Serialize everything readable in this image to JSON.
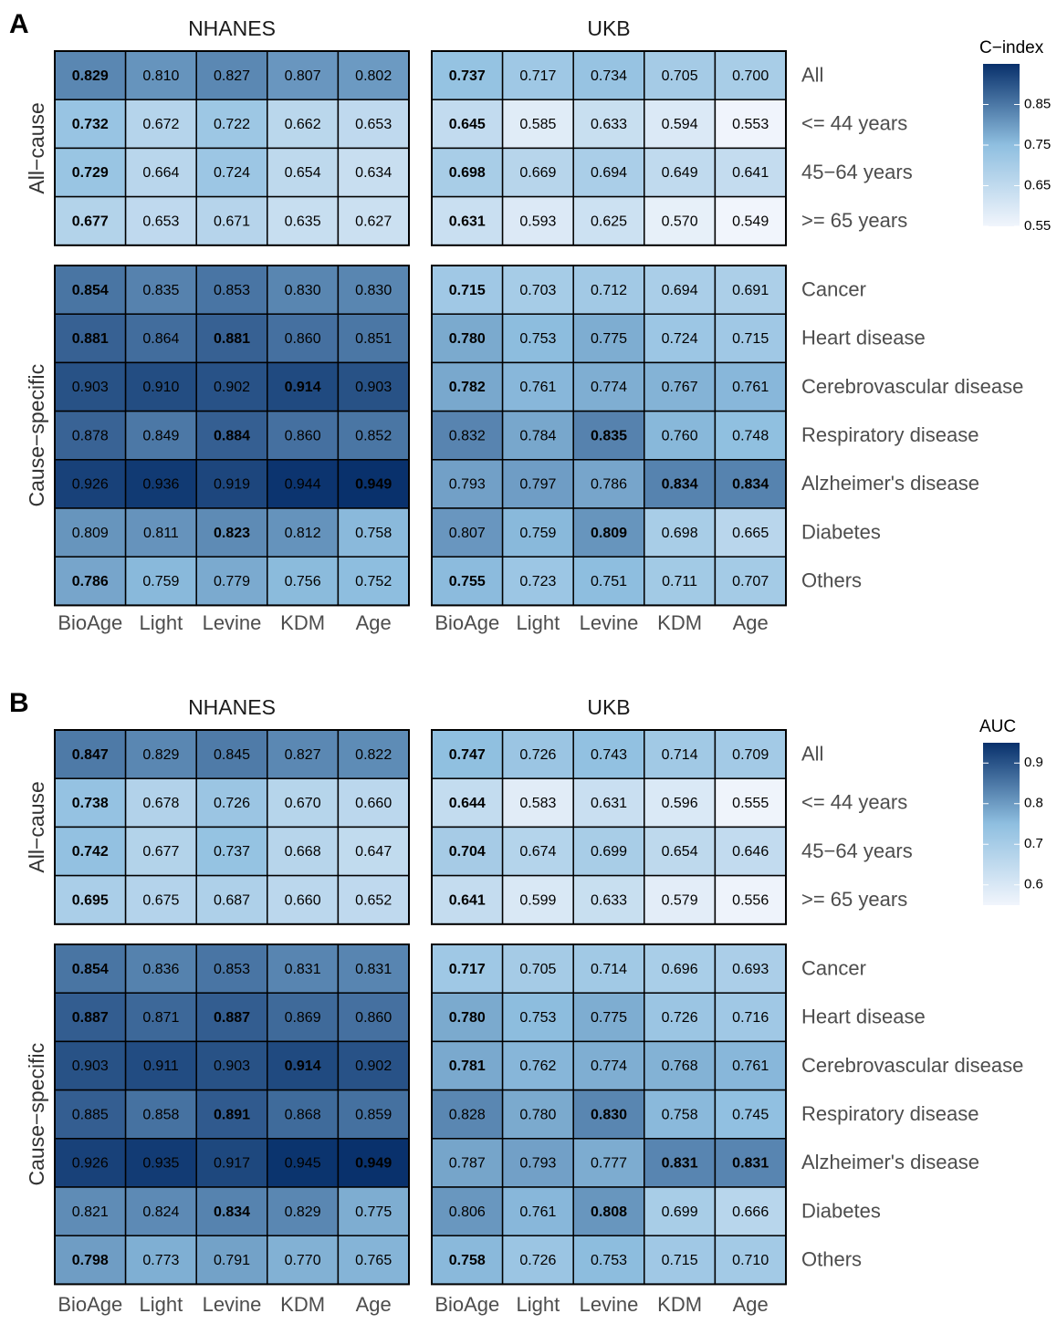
{
  "colors": {
    "low": "#f1f5fc",
    "mid": "#8fbfe0",
    "high": "#08306b"
  },
  "chart_data": [
    {
      "type": "heatmap",
      "panel_label": "A",
      "legend_title": "C−index",
      "scale": {
        "min": 0.55,
        "max": 0.95,
        "ticks": [
          "0.85",
          "0.75",
          "0.65",
          "0.55"
        ],
        "tick_values": [
          0.85,
          0.75,
          0.65,
          0.55
        ]
      },
      "datasets": [
        "NHANES",
        "UKB"
      ],
      "columns": [
        "BioAge",
        "Light",
        "Levine",
        "KDM",
        "Age"
      ],
      "groups": [
        {
          "label": "All−cause",
          "rows": [
            "All",
            "<= 44 years",
            "45−64 years",
            ">= 65 years"
          ],
          "values": {
            "NHANES": [
              [
                0.829,
                0.81,
                0.827,
                0.807,
                0.802
              ],
              [
                0.732,
                0.672,
                0.722,
                0.662,
                0.653
              ],
              [
                0.729,
                0.664,
                0.724,
                0.654,
                0.634
              ],
              [
                0.677,
                0.653,
                0.671,
                0.635,
                0.627
              ]
            ],
            "UKB": [
              [
                0.737,
                0.717,
                0.734,
                0.705,
                0.7
              ],
              [
                0.645,
                0.585,
                0.633,
                0.594,
                0.553
              ],
              [
                0.698,
                0.669,
                0.694,
                0.649,
                0.641
              ],
              [
                0.631,
                0.593,
                0.625,
                0.57,
                0.549
              ]
            ]
          }
        },
        {
          "label": "Cause−specific",
          "rows": [
            "Cancer",
            "Heart disease",
            "Cerebrovascular disease",
            "Respiratory disease",
            "Alzheimer's disease",
            "Diabetes",
            "Others"
          ],
          "values": {
            "NHANES": [
              [
                0.854,
                0.835,
                0.853,
                0.83,
                0.83
              ],
              [
                0.881,
                0.864,
                0.881,
                0.86,
                0.851
              ],
              [
                0.903,
                0.91,
                0.902,
                0.914,
                0.903
              ],
              [
                0.878,
                0.849,
                0.884,
                0.86,
                0.852
              ],
              [
                0.926,
                0.936,
                0.919,
                0.944,
                0.949
              ],
              [
                0.809,
                0.811,
                0.823,
                0.812,
                0.758
              ],
              [
                0.786,
                0.759,
                0.779,
                0.756,
                0.752
              ]
            ],
            "UKB": [
              [
                0.715,
                0.703,
                0.712,
                0.694,
                0.691
              ],
              [
                0.78,
                0.753,
                0.775,
                0.724,
                0.715
              ],
              [
                0.782,
                0.761,
                0.774,
                0.767,
                0.761
              ],
              [
                0.832,
                0.784,
                0.835,
                0.76,
                0.748
              ],
              [
                0.793,
                0.797,
                0.786,
                0.834,
                0.834
              ],
              [
                0.807,
                0.759,
                0.809,
                0.698,
                0.665
              ],
              [
                0.755,
                0.723,
                0.751,
                0.711,
                0.707
              ]
            ]
          }
        }
      ]
    },
    {
      "type": "heatmap",
      "panel_label": "B",
      "legend_title": "AUC",
      "scale": {
        "min": 0.55,
        "max": 0.95,
        "ticks": [
          "0.9",
          "0.8",
          "0.7",
          "0.6"
        ],
        "tick_values": [
          0.9,
          0.8,
          0.7,
          0.6
        ]
      },
      "datasets": [
        "NHANES",
        "UKB"
      ],
      "columns": [
        "BioAge",
        "Light",
        "Levine",
        "KDM",
        "Age"
      ],
      "groups": [
        {
          "label": "All−cause",
          "rows": [
            "All",
            "<= 44 years",
            "45−64 years",
            ">= 65 years"
          ],
          "values": {
            "NHANES": [
              [
                0.847,
                0.829,
                0.845,
                0.827,
                0.822
              ],
              [
                0.738,
                0.678,
                0.726,
                0.67,
                0.66
              ],
              [
                0.742,
                0.677,
                0.737,
                0.668,
                0.647
              ],
              [
                0.695,
                0.675,
                0.687,
                0.66,
                0.652
              ]
            ],
            "UKB": [
              [
                0.747,
                0.726,
                0.743,
                0.714,
                0.709
              ],
              [
                0.644,
                0.583,
                0.631,
                0.596,
                0.555
              ],
              [
                0.704,
                0.674,
                0.699,
                0.654,
                0.646
              ],
              [
                0.641,
                0.599,
                0.633,
                0.579,
                0.556
              ]
            ]
          }
        },
        {
          "label": "Cause−specific",
          "rows": [
            "Cancer",
            "Heart disease",
            "Cerebrovascular disease",
            "Respiratory disease",
            "Alzheimer's disease",
            "Diabetes",
            "Others"
          ],
          "values": {
            "NHANES": [
              [
                0.854,
                0.836,
                0.853,
                0.831,
                0.831
              ],
              [
                0.887,
                0.871,
                0.887,
                0.869,
                0.86
              ],
              [
                0.903,
                0.911,
                0.903,
                0.914,
                0.902
              ],
              [
                0.885,
                0.858,
                0.891,
                0.868,
                0.859
              ],
              [
                0.926,
                0.935,
                0.917,
                0.945,
                0.949
              ],
              [
                0.821,
                0.824,
                0.834,
                0.829,
                0.775
              ],
              [
                0.798,
                0.773,
                0.791,
                0.77,
                0.765
              ]
            ],
            "UKB": [
              [
                0.717,
                0.705,
                0.714,
                0.696,
                0.693
              ],
              [
                0.78,
                0.753,
                0.775,
                0.726,
                0.716
              ],
              [
                0.781,
                0.762,
                0.774,
                0.768,
                0.761
              ],
              [
                0.828,
                0.78,
                0.83,
                0.758,
                0.745
              ],
              [
                0.787,
                0.793,
                0.777,
                0.831,
                0.831
              ],
              [
                0.806,
                0.761,
                0.808,
                0.699,
                0.666
              ],
              [
                0.758,
                0.726,
                0.753,
                0.715,
                0.71
              ]
            ]
          }
        }
      ]
    }
  ]
}
